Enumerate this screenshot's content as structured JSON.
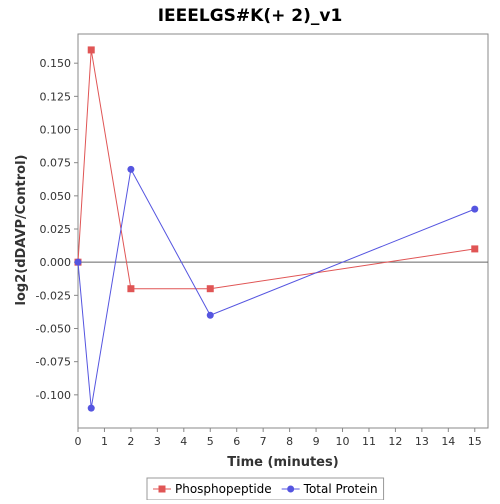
{
  "chart_data": {
    "type": "line",
    "title": "IEEELGS#K(+ 2)_v1",
    "xlabel": "Time (minutes)",
    "ylabel": "log2(dDAVP/Control)",
    "xlim": [
      0,
      15.5
    ],
    "ylim": [
      -0.125,
      0.172
    ],
    "x_ticks": [
      0,
      1,
      2,
      3,
      4,
      5,
      6,
      7,
      8,
      9,
      10,
      11,
      12,
      13,
      14,
      15
    ],
    "x_tick_labels": [
      "0",
      "1",
      "2",
      "3",
      "4",
      "5",
      "6",
      "7",
      "8",
      "9",
      "10",
      "11",
      "12",
      "13",
      "14",
      "15"
    ],
    "y_ticks": [
      -0.1,
      -0.075,
      -0.05,
      -0.025,
      0,
      0.025,
      0.05,
      0.075,
      0.1,
      0.125,
      0.15
    ],
    "y_tick_labels": [
      "-0.100",
      "-0.075",
      "-0.050",
      "-0.025",
      "0.000",
      "0.025",
      "0.050",
      "0.075",
      "0.100",
      "0.125",
      "0.150"
    ],
    "zero_line": true,
    "grid": false,
    "legend_position": "bottom",
    "series": [
      {
        "name": "Phosphopeptide",
        "color": "#e05555",
        "marker": "square",
        "x": [
          0,
          0.5,
          2,
          5,
          15
        ],
        "y": [
          0.0,
          0.16,
          -0.02,
          -0.02,
          0.01
        ]
      },
      {
        "name": "Total Protein",
        "color": "#5555e0",
        "marker": "circle",
        "x": [
          0,
          0.5,
          2,
          5,
          15
        ],
        "y": [
          0.0,
          -0.11,
          0.07,
          -0.04,
          0.04
        ]
      }
    ]
  }
}
